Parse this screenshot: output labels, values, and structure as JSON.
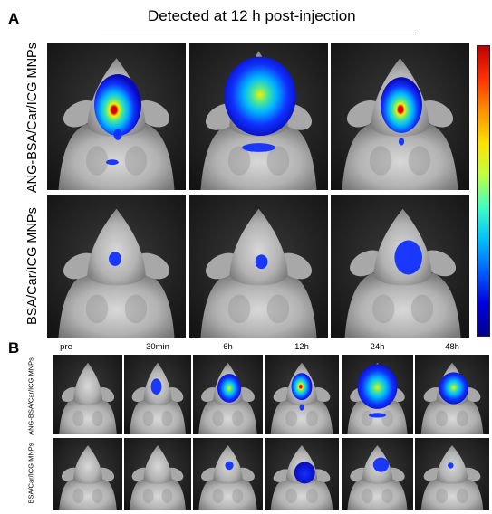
{
  "panel_a": {
    "letter": "A",
    "header": "Detected at 12 h post-injection",
    "rows": [
      {
        "label": "ANG-BSA/Car/ICG MNPs"
      },
      {
        "label": "BSA/Car/ICG MNPs"
      }
    ]
  },
  "panel_b": {
    "letter": "B",
    "timepoints": [
      "pre",
      "30min",
      "6h",
      "12h",
      "24h",
      "48h"
    ],
    "rows": [
      {
        "label": "ANG-BSA/Car/ICG MNPs"
      },
      {
        "label": "BSA/Car/ICG MNPs"
      }
    ]
  },
  "colorbar": {
    "colors": [
      "#c00000",
      "#ff3000",
      "#ff9000",
      "#ffe000",
      "#c0ff40",
      "#40ffc0",
      "#00c0ff",
      "#0060ff",
      "#0000e0",
      "#000090"
    ]
  },
  "fluorescence_colors": {
    "core": "#d80000",
    "yellow": "#f4f000",
    "green": "#50e890",
    "cyan": "#00b8ff",
    "blue": "#1030ff",
    "edge": "#0a0ab8"
  }
}
